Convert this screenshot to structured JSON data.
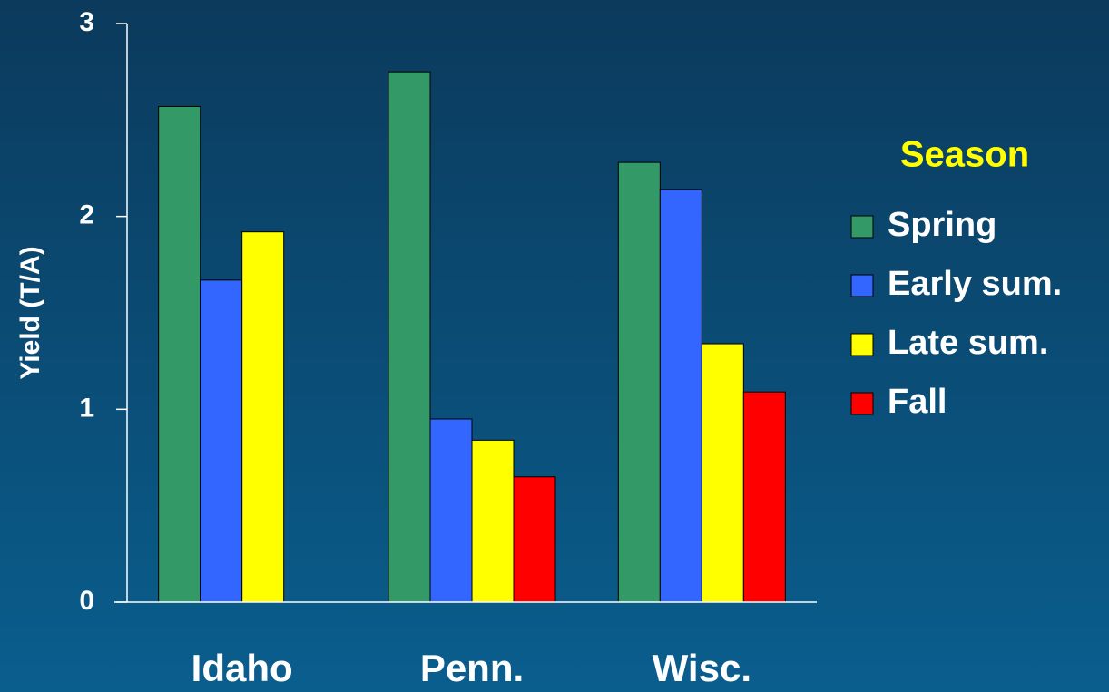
{
  "chart_data": {
    "type": "bar",
    "y_label": "Yield (T/A)",
    "legend_title": "Season",
    "categories": [
      "Idaho",
      "Penn.",
      "Wisc."
    ],
    "series": [
      {
        "name": "Spring",
        "color": "#339966",
        "values": [
          2.57,
          2.75,
          2.28
        ]
      },
      {
        "name": "Early sum.",
        "color": "#3366ff",
        "values": [
          1.67,
          0.95,
          2.14
        ]
      },
      {
        "name": "Late sum.",
        "color": "#ffff00",
        "values": [
          1.92,
          0.84,
          1.34
        ]
      },
      {
        "name": "Fall",
        "color": "#ff0000",
        "values": [
          null,
          0.65,
          1.09
        ]
      }
    ],
    "ylim": [
      0,
      3
    ],
    "yticks": [
      0,
      1,
      2,
      3
    ],
    "legend": "right"
  }
}
